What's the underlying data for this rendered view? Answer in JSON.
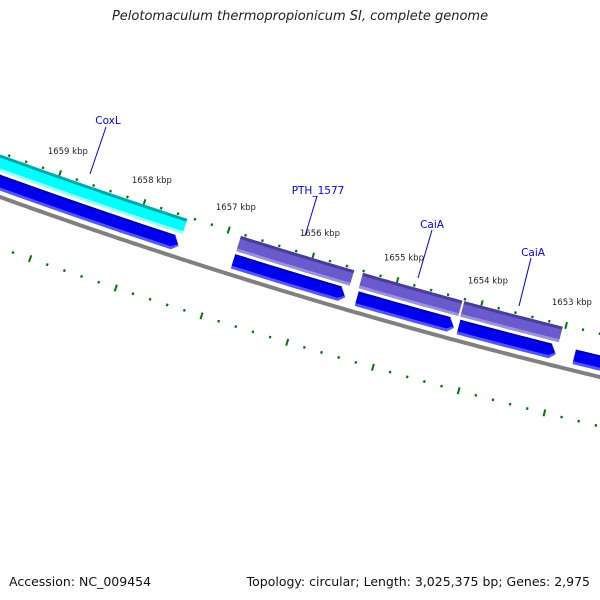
{
  "title": "Pelotomaculum thermopropionicum SI, complete genome",
  "footer": {
    "accession": "Accession: NC_009454",
    "summary": "Topology: circular; Length: 3,025,375 bp; Genes: 2,975"
  },
  "ruler": {
    "labels": [
      "1659 kbp",
      "1658 kbp",
      "1657 kbp",
      "1656 kbp",
      "1655 kbp",
      "1654 kbp",
      "1653 kbp"
    ]
  },
  "genes": [
    {
      "label": "CoxL",
      "color": "#00ffff"
    },
    {
      "label": "PTH_1577",
      "color": "#6a5acd"
    },
    {
      "label": "CaiA",
      "color": "#6a5acd"
    },
    {
      "label": "CaiA",
      "color": "#6a5acd"
    }
  ],
  "colors": {
    "cds_forward": "#0000ee",
    "backbone": "#808080",
    "ticks": "#007700",
    "label": "#0000ee"
  }
}
